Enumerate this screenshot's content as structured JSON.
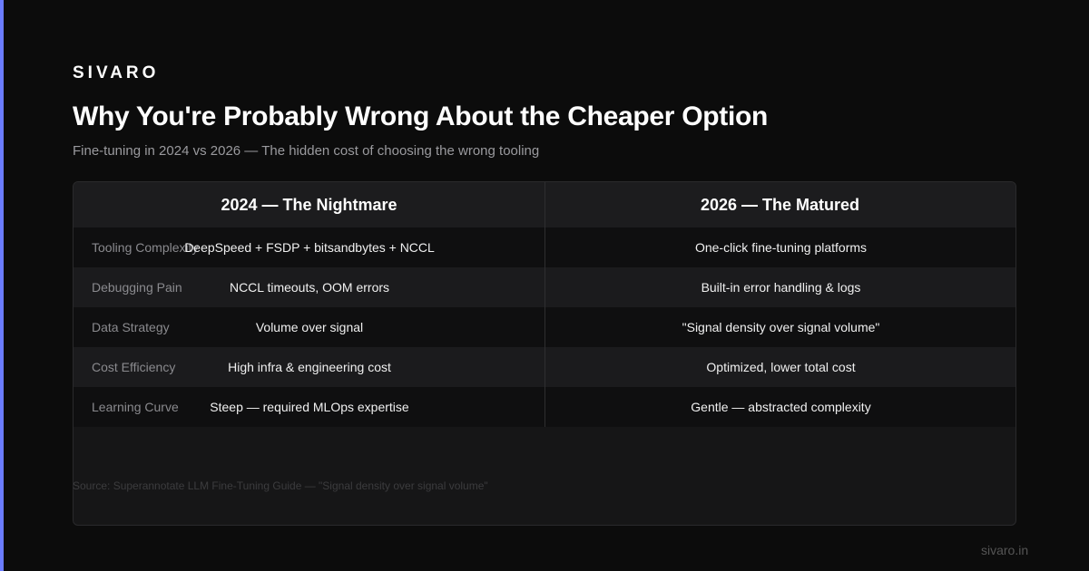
{
  "brand": "SIVARO",
  "title": "Why You're Probably Wrong About the Cheaper Option",
  "subtitle": "Fine-tuning in 2024 vs 2026 — The hidden cost of choosing the wrong tooling",
  "table": {
    "headers": [
      "2024 — The Nightmare",
      "2026 — The Matured"
    ],
    "rows": [
      [
        "Tooling Complexity",
        "DeepSpeed + FSDP + bitsandbytes + NCCL",
        "One-click fine-tuning platforms"
      ],
      [
        "Debugging Pain",
        "NCCL timeouts, OOM errors",
        "Built-in error handling & logs"
      ],
      [
        "Data Strategy",
        "Volume over signal",
        "\"Signal density over signal volume\""
      ],
      [
        "Cost Efficiency",
        "High infra & engineering cost",
        "Optimized, lower total cost"
      ],
      [
        "Learning Curve",
        "Steep — required MLOps expertise",
        "Gentle — abstracted complexity"
      ]
    ]
  },
  "source": "Source: Superannotate LLM Fine-Tuning Guide — \"Signal density over signal volume\"",
  "footer": "sivaro.in"
}
